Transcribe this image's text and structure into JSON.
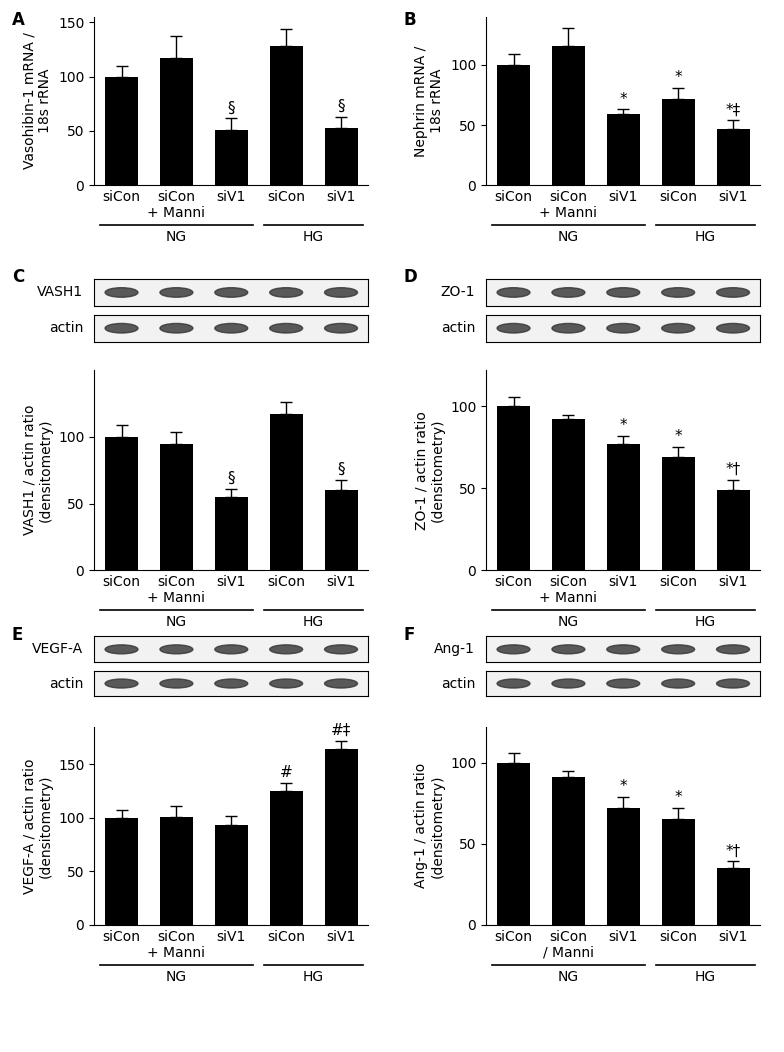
{
  "chart_data": [
    {
      "type": "bar",
      "panel": "A",
      "ylabel": "Vasohibin-1 mRNA /\n18s rRNA",
      "categories": [
        "siCon",
        "siCon\n+ Manni",
        "siV1",
        "siCon",
        "siV1"
      ],
      "values": [
        100,
        117,
        51,
        128,
        53
      ],
      "errors": [
        10,
        20,
        11,
        16,
        10
      ],
      "significance": [
        null,
        null,
        "§",
        null,
        "§"
      ],
      "groups": [
        {
          "label": "NG",
          "count": 3
        },
        {
          "label": "HG",
          "count": 2
        }
      ],
      "color": "#000000",
      "ylim": [
        0,
        155
      ],
      "yticks": [
        0,
        50,
        100,
        150
      ]
    },
    {
      "type": "bar",
      "panel": "B",
      "ylabel": "Nephrin mRNA /\n18s rRNA",
      "categories": [
        "siCon",
        "siCon\n+ Manni",
        "siV1",
        "siCon",
        "siV1"
      ],
      "values": [
        100,
        116,
        59,
        72,
        47
      ],
      "errors": [
        9,
        15,
        4,
        9,
        7
      ],
      "significance": [
        null,
        null,
        "*",
        "*",
        "*‡"
      ],
      "groups": [
        {
          "label": "NG",
          "count": 3
        },
        {
          "label": "HG",
          "count": 2
        }
      ],
      "color": "#000000",
      "ylim": [
        0,
        140
      ],
      "yticks": [
        0,
        50,
        100
      ]
    },
    {
      "type": "bar",
      "panel": "C",
      "ylabel": "VASH1 / actin ratio\n(densitometry)",
      "blot": [
        "VASH1",
        "actin"
      ],
      "categories": [
        "siCon",
        "siCon\n+ Manni",
        "siV1",
        "siCon",
        "siV1"
      ],
      "values": [
        100,
        95,
        55,
        117,
        60
      ],
      "errors": [
        9,
        9,
        6,
        9,
        8
      ],
      "significance": [
        null,
        null,
        "§",
        null,
        "§"
      ],
      "groups": [
        {
          "label": "NG",
          "count": 3
        },
        {
          "label": "HG",
          "count": 2
        }
      ],
      "color": "#000000",
      "ylim": [
        0,
        150
      ],
      "yticks": [
        0,
        50,
        100
      ]
    },
    {
      "type": "bar",
      "panel": "D",
      "ylabel": "ZO-1 / actin ratio\n(densitometry)",
      "blot": [
        "ZO-1",
        "actin"
      ],
      "categories": [
        "siCon",
        "siCon\n+ Manni",
        "siV1",
        "siCon",
        "siV1"
      ],
      "values": [
        100,
        92,
        77,
        69,
        49
      ],
      "errors": [
        6,
        3,
        5,
        6,
        6
      ],
      "significance": [
        null,
        null,
        "*",
        "*",
        "*†"
      ],
      "groups": [
        {
          "label": "NG",
          "count": 3
        },
        {
          "label": "HG",
          "count": 2
        }
      ],
      "color": "#000000",
      "ylim": [
        0,
        122
      ],
      "yticks": [
        0,
        50,
        100
      ]
    },
    {
      "type": "bar",
      "panel": "E",
      "ylabel": "VEGF-A / actin ratio\n(densitometry)",
      "blot": [
        "VEGF-A",
        "actin"
      ],
      "categories": [
        "siCon",
        "siCon\n+ Manni",
        "siV1",
        "siCon",
        "siV1"
      ],
      "values": [
        100,
        101,
        93,
        125,
        164
      ],
      "errors": [
        7,
        10,
        9,
        8,
        8
      ],
      "significance": [
        null,
        null,
        null,
        "#",
        "#‡"
      ],
      "groups": [
        {
          "label": "NG",
          "count": 3
        },
        {
          "label": "HG",
          "count": 2
        }
      ],
      "color": "#000000",
      "ylim": [
        0,
        185
      ],
      "yticks": [
        0,
        50,
        100,
        150
      ]
    },
    {
      "type": "bar",
      "panel": "F",
      "ylabel": "Ang-1 / actin ratio\n(densitometry)",
      "blot": [
        "Ang-1",
        "actin"
      ],
      "categories": [
        "siCon",
        "siCon\n/ Manni",
        "siV1",
        "siCon",
        "siV1"
      ],
      "values": [
        100,
        91,
        72,
        65,
        35
      ],
      "errors": [
        6,
        4,
        7,
        7,
        4
      ],
      "significance": [
        null,
        null,
        "*",
        "*",
        "*†"
      ],
      "groups": [
        {
          "label": "NG",
          "count": 3
        },
        {
          "label": "HG",
          "count": 2
        }
      ],
      "color": "#000000",
      "ylim": [
        0,
        122
      ],
      "yticks": [
        0,
        50,
        100
      ]
    }
  ]
}
